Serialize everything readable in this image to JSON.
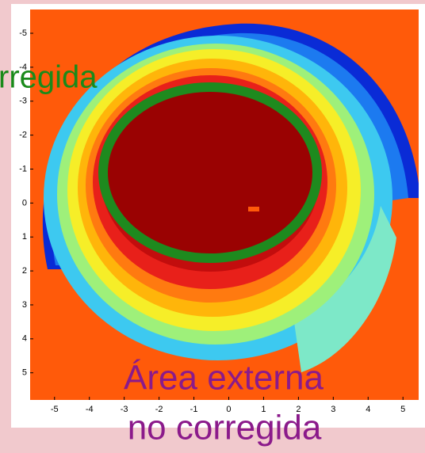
{
  "chart_data": {
    "type": "heatmap",
    "xlim": [
      -5.7,
      5.45
    ],
    "xticks": [
      -5,
      -4,
      -3,
      -2,
      -1,
      0,
      1,
      2,
      3,
      4,
      5
    ],
    "ylim": [
      -5.7,
      5.8
    ],
    "yticks": [
      -5,
      -4,
      -3,
      -2,
      -1,
      0,
      1,
      2,
      3,
      4,
      5
    ],
    "y_reversed": true,
    "annotations": [
      "rregida",
      "Área externa",
      "no corregida"
    ]
  }
}
